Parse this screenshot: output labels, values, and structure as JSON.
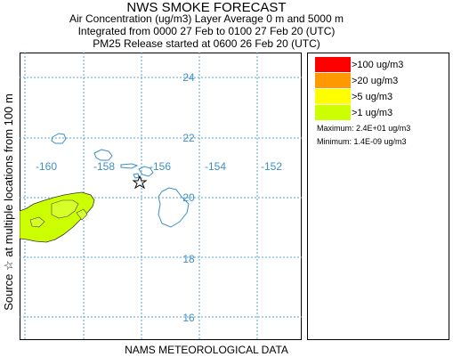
{
  "header": {
    "title": "NWS SMOKE FORECAST",
    "line1": "Air Concentration (ug/m3) Layer Average    0 m and  5000 m",
    "line2": "Integrated from 0000 27 Feb to 0100 27 Feb 20 (UTC)",
    "line3": "PM25 Release started at 0600 26 Feb 20 (UTC)"
  },
  "side_label": "Source ☆  at multiple locations    from   100 m",
  "footer": "NAMS METEOROLOGICAL DATA",
  "map": {
    "lat_labels": [
      "24",
      "22",
      "20",
      "18",
      "16"
    ],
    "lon_labels": [
      "-160",
      "-158",
      "-156",
      "-154",
      "-152"
    ],
    "grid_color": "#5aa5d6",
    "coast_color": "#3d8fc7",
    "source_icon": "star-icon"
  },
  "legend": {
    "items": [
      {
        "label": ">100 ug/m3",
        "color": "#ff0000"
      },
      {
        "label": ">20 ug/m3",
        "color": "#ff9900"
      },
      {
        "label": ">5 ug/m3",
        "color": "#ffff00"
      },
      {
        "label": ">1 ug/m3",
        "color": "#ccff00"
      }
    ],
    "maximum": "Maximum: 2.4E+01 ug/m3",
    "minimum": "Minimum: 1.4E-09 ug/m3"
  }
}
